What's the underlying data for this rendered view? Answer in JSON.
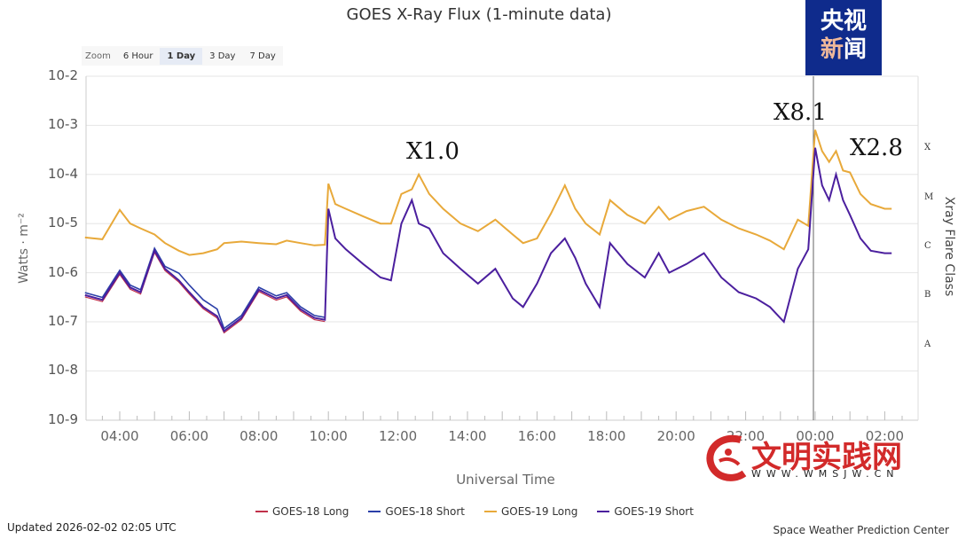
{
  "title": "GOES X-Ray Flux (1-minute data)",
  "zoom": {
    "label": "Zoom",
    "options": [
      "6 Hour",
      "1 Day",
      "3 Day",
      "7 Day"
    ],
    "selected": "1 Day"
  },
  "branding": {
    "logo_line1": "央视",
    "logo_line2a": "新",
    "logo_line2b": "闻",
    "watermark_text": "文明实践网",
    "watermark_url": "WWW.WMSJW.CN"
  },
  "footer": {
    "updated": "Updated 2026-02-02 02:05 UTC",
    "credit": "Space Weather Prediction Center"
  },
  "chart_data": {
    "type": "line",
    "title": "GOES X-Ray Flux (1-minute data)",
    "xlabel": "Universal Time",
    "ylabel": "Watts · m⁻²",
    "y2label": "Xray Flare Class",
    "yscale": "log",
    "ylim": [
      1e-09,
      0.01
    ],
    "yticks": [
      "10-2",
      "10-3",
      "10-4",
      "10-5",
      "10-6",
      "10-7",
      "10-8",
      "10-9"
    ],
    "xticks": [
      "04:00",
      "06:00",
      "08:00",
      "10:00",
      "12:00",
      "14:00",
      "16:00",
      "18:00",
      "20:00",
      "22:00",
      "00:00",
      "02:00"
    ],
    "flare_classes": [
      "X",
      "M",
      "C",
      "B",
      "A"
    ],
    "grid": true,
    "legend_position": "bottom",
    "annotations": [
      {
        "text": "X1.0",
        "x": "12:30"
      },
      {
        "text": "X8.1",
        "x": "00:00"
      },
      {
        "text": "X2.8",
        "x": "00:45"
      }
    ],
    "vertical_marker": "00:00",
    "x_hours": [
      3.0,
      3.5,
      4.0,
      4.3,
      4.6,
      5.0,
      5.3,
      5.7,
      6.0,
      6.4,
      6.8,
      7.0,
      7.5,
      8.0,
      8.5,
      8.8,
      9.2,
      9.6,
      9.9,
      10.0,
      10.2,
      10.5,
      11.0,
      11.5,
      11.8,
      12.1,
      12.4,
      12.6,
      12.9,
      13.3,
      13.8,
      14.3,
      14.8,
      15.3,
      15.6,
      16.0,
      16.4,
      16.8,
      17.1,
      17.4,
      17.8,
      18.1,
      18.6,
      19.1,
      19.5,
      19.8,
      20.3,
      20.8,
      21.3,
      21.8,
      22.3,
      22.7,
      23.1,
      23.5,
      23.8,
      24.0,
      24.2,
      24.4,
      24.6,
      24.8,
      25.0,
      25.3,
      25.6,
      26.0,
      26.2
    ],
    "series": [
      {
        "name": "GOES-18 Long",
        "color": "#c0304a",
        "values": []
      },
      {
        "name": "GOES-18 Short",
        "color": "#2b3fa8",
        "values": []
      },
      {
        "name": "GOES-19 Long",
        "color": "#e8a93a",
        "values": [
          5.2e-06,
          4.8e-06,
          1.9e-05,
          1e-05,
          8e-06,
          6e-06,
          4e-06,
          2.8e-06,
          2.3e-06,
          2.5e-06,
          3e-06,
          4e-06,
          4.3e-06,
          4e-06,
          3.8e-06,
          4.5e-06,
          4e-06,
          3.6e-06,
          3.7e-06,
          6.5e-05,
          2.5e-05,
          2e-05,
          1.4e-05,
          1e-05,
          1e-05,
          4e-05,
          5e-05,
          0.0001,
          4e-05,
          2e-05,
          1e-05,
          7e-06,
          1.2e-05,
          6e-06,
          4e-06,
          5e-06,
          1.6e-05,
          6e-05,
          2e-05,
          1e-05,
          6e-06,
          3e-05,
          1.5e-05,
          1e-05,
          2.2e-05,
          1.2e-05,
          1.8e-05,
          2.2e-05,
          1.2e-05,
          8e-06,
          6e-06,
          4.5e-06,
          3e-06,
          1.2e-05,
          9e-06,
          0.00081,
          0.0003,
          0.00018,
          0.0003,
          0.00012,
          0.00011,
          4e-05,
          2.5e-05,
          2e-05,
          2e-05
        ]
      },
      {
        "name": "GOES-19 Short",
        "color": "#4b1f9e",
        "values": [
          3.5e-07,
          2.8e-07,
          1e-06,
          5e-07,
          4e-07,
          2.8e-06,
          1.2e-06,
          7e-07,
          4e-07,
          2e-07,
          1.3e-07,
          6.5e-08,
          1.2e-07,
          4.5e-07,
          3e-07,
          3.5e-07,
          1.8e-07,
          1.2e-07,
          1.1e-07,
          2e-05,
          5e-06,
          3e-06,
          1.5e-06,
          8e-07,
          7e-07,
          1e-05,
          3e-05,
          1e-05,
          8e-06,
          2.5e-06,
          1.2e-06,
          6e-07,
          1.2e-06,
          3e-07,
          2e-07,
          6e-07,
          2.5e-06,
          5e-06,
          2e-06,
          6e-07,
          2e-07,
          4e-06,
          1.5e-06,
          8e-07,
          2.5e-06,
          1e-06,
          1.5e-06,
          2.5e-06,
          8e-07,
          4e-07,
          3e-07,
          2e-07,
          1e-07,
          1.2e-06,
          3e-06,
          0.00035,
          6e-05,
          3e-05,
          0.0001,
          3e-05,
          1.5e-05,
          5e-06,
          2.8e-06,
          2.5e-06,
          2.5e-06
        ]
      }
    ]
  }
}
